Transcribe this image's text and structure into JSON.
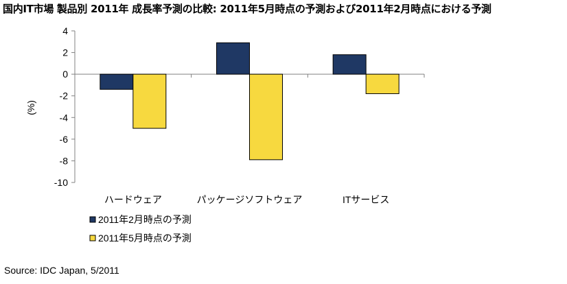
{
  "title": "国内IT市場 製品別 2011年 成長率予測の比較: 2011年5月時点の予測および2011年2月時点における予測",
  "source": "Source: IDC Japan, 5/2011",
  "chart_data": {
    "type": "bar",
    "title": "国内IT市場 製品別 2011年 成長率予測の比較: 2011年5月時点の予測および2011年2月時点における予測",
    "categories": [
      "ハードウェア",
      "パッケージソフトウェア",
      "ITサービス"
    ],
    "series": [
      {
        "name": "2011年2月時点の予測",
        "values": [
          -1.4,
          2.9,
          1.8
        ],
        "color": "#1f3864"
      },
      {
        "name": "2011年5月時点の予測",
        "values": [
          -5.0,
          -7.9,
          -1.8
        ],
        "color": "#f7d93f"
      }
    ],
    "ylabel": "(%)",
    "ylim": [
      -10,
      4
    ],
    "yticks": [
      4,
      2,
      0,
      -2,
      -4,
      -6,
      -8,
      -10
    ],
    "grid": false,
    "legend_position": "bottom-left"
  }
}
